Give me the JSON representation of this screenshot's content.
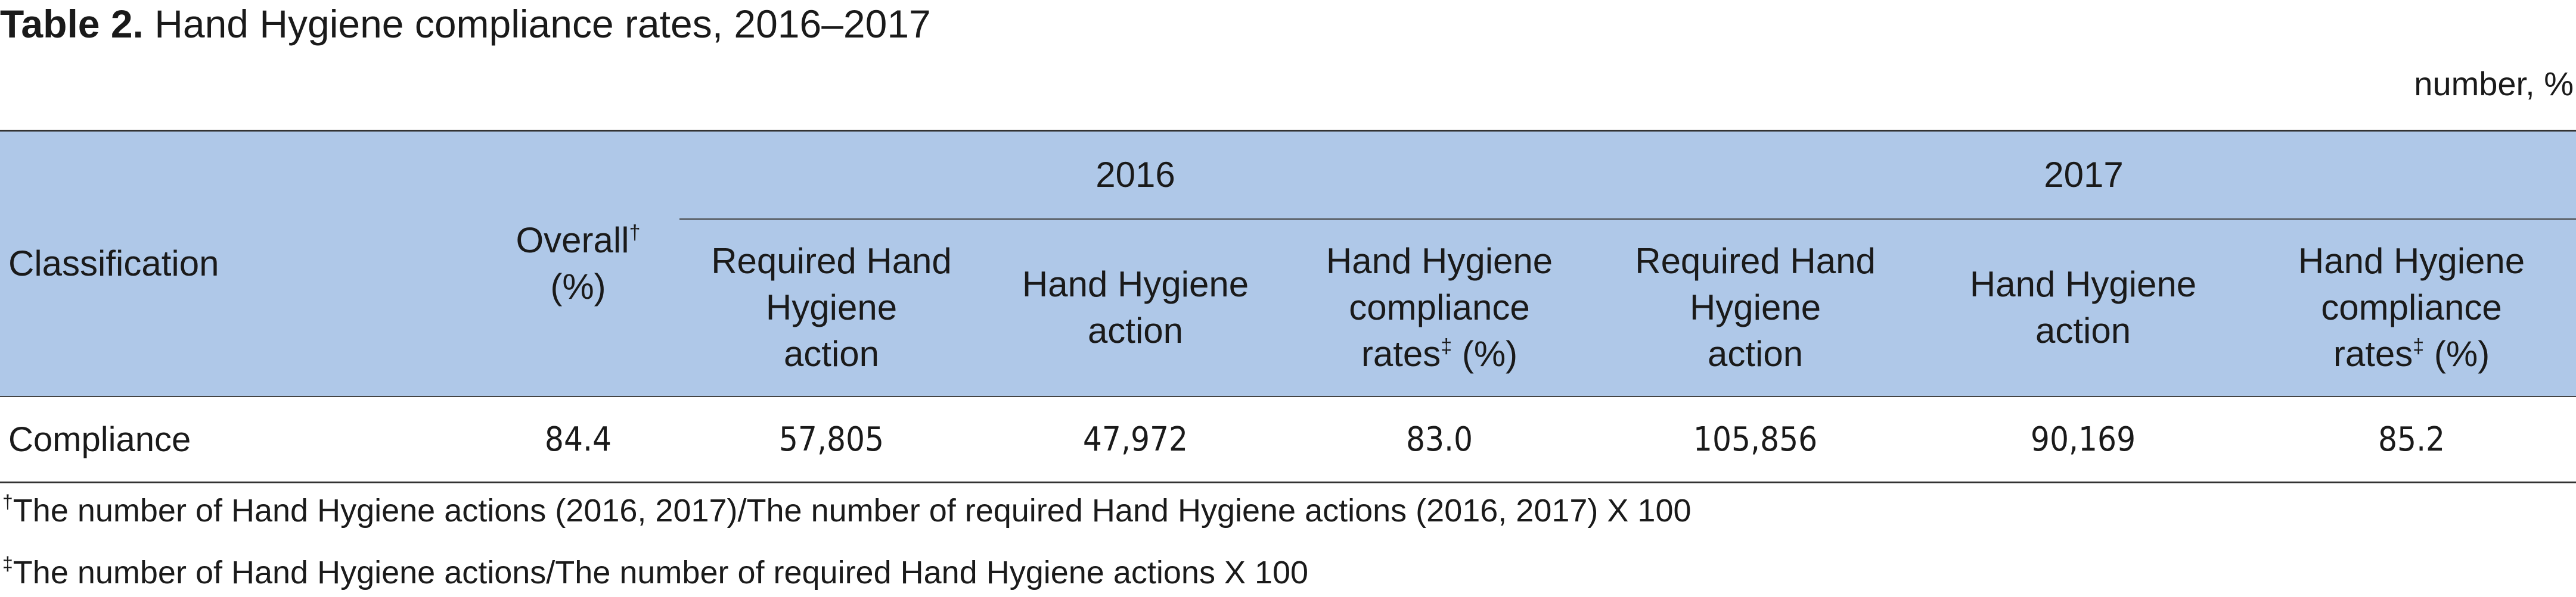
{
  "title": {
    "label": "Table 2.",
    "text": " Hand Hygiene compliance rates, 2016–2017"
  },
  "unit": "number, %",
  "header": {
    "classification": "Classification",
    "overall": "Overall",
    "overall_unit": "(%)",
    "dagger": "†",
    "ddagger": "‡",
    "years": [
      "2016",
      "2017"
    ],
    "col_required": [
      "Required Hand",
      "Hygiene",
      "action"
    ],
    "col_action": [
      "Hand Hygiene",
      "action"
    ],
    "col_rate": [
      "Hand Hygiene",
      "compliance",
      "rates",
      "(%)"
    ]
  },
  "rows": [
    {
      "label": "Compliance",
      "overall": "84.4",
      "y2016": {
        "required": "57,805",
        "action": "47,972",
        "rate": "83.0"
      },
      "y2017": {
        "required": "105,856",
        "action": "90,169",
        "rate": "85.2"
      }
    }
  ],
  "footnotes": [
    {
      "mark": "†",
      "text": "The number of Hand Hygiene actions (2016, 2017)/The number of required Hand Hygiene actions (2016, 2017) X 100"
    },
    {
      "mark": "‡",
      "text": "The number of Hand Hygiene actions/The number of required Hand Hygiene actions X 100"
    }
  ]
}
